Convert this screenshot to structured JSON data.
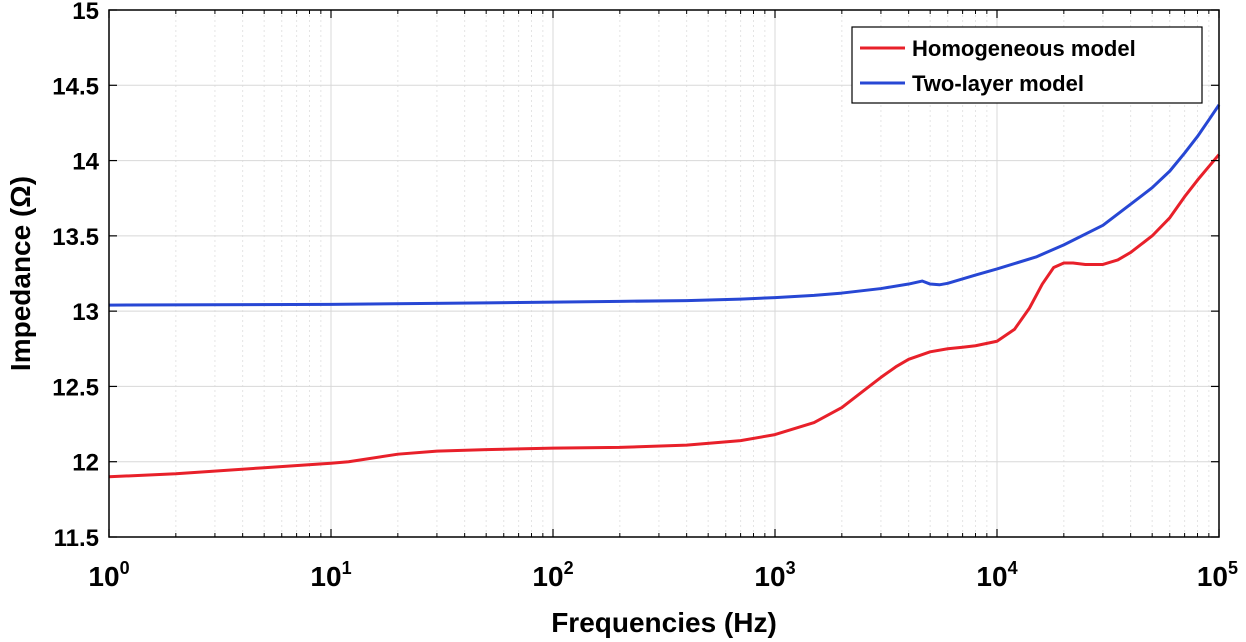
{
  "chart_data": {
    "type": "line",
    "title": "",
    "xlabel": "Frequencies (Hz)",
    "ylabel": "Impedance (Ω)",
    "xscale": "log",
    "xlim": [
      1,
      100000
    ],
    "ylim": [
      11.5,
      15
    ],
    "grid": true,
    "legend_position": "top-right",
    "x_ticks": [
      {
        "value": 1,
        "base": "10",
        "exp": "0"
      },
      {
        "value": 10,
        "base": "10",
        "exp": "1"
      },
      {
        "value": 100,
        "base": "10",
        "exp": "2"
      },
      {
        "value": 1000,
        "base": "10",
        "exp": "3"
      },
      {
        "value": 10000,
        "base": "10",
        "exp": "4"
      },
      {
        "value": 100000,
        "base": "10",
        "exp": "5"
      }
    ],
    "y_ticks": [
      {
        "value": 11.5,
        "label": "11.5"
      },
      {
        "value": 12,
        "label": "12"
      },
      {
        "value": 12.5,
        "label": "12.5"
      },
      {
        "value": 13,
        "label": "13"
      },
      {
        "value": 13.5,
        "label": "13.5"
      },
      {
        "value": 14,
        "label": "14"
      },
      {
        "value": 14.5,
        "label": "14.5"
      },
      {
        "value": 15,
        "label": "15"
      }
    ],
    "series": [
      {
        "name": "Homogeneous model",
        "color": "#e8202a",
        "points": [
          [
            1,
            11.9
          ],
          [
            2,
            11.92
          ],
          [
            5,
            11.96
          ],
          [
            10,
            11.99
          ],
          [
            12,
            12.0
          ],
          [
            20,
            12.05
          ],
          [
            30,
            12.07
          ],
          [
            50,
            12.08
          ],
          [
            100,
            12.09
          ],
          [
            200,
            12.095
          ],
          [
            400,
            12.11
          ],
          [
            700,
            12.14
          ],
          [
            1000,
            12.18
          ],
          [
            1500,
            12.26
          ],
          [
            2000,
            12.36
          ],
          [
            2500,
            12.47
          ],
          [
            3000,
            12.56
          ],
          [
            3500,
            12.63
          ],
          [
            4000,
            12.68
          ],
          [
            5000,
            12.73
          ],
          [
            6000,
            12.75
          ],
          [
            7000,
            12.76
          ],
          [
            8000,
            12.77
          ],
          [
            10000,
            12.8
          ],
          [
            12000,
            12.88
          ],
          [
            14000,
            13.02
          ],
          [
            16000,
            13.18
          ],
          [
            18000,
            13.29
          ],
          [
            20000,
            13.32
          ],
          [
            22000,
            13.32
          ],
          [
            25000,
            13.31
          ],
          [
            30000,
            13.31
          ],
          [
            35000,
            13.34
          ],
          [
            40000,
            13.39
          ],
          [
            50000,
            13.5
          ],
          [
            60000,
            13.62
          ],
          [
            70000,
            13.76
          ],
          [
            80000,
            13.87
          ],
          [
            90000,
            13.96
          ],
          [
            100000,
            14.04
          ]
        ]
      },
      {
        "name": "Two-layer model",
        "color": "#2747d4",
        "points": [
          [
            1,
            13.04
          ],
          [
            10,
            13.045
          ],
          [
            50,
            13.055
          ],
          [
            100,
            13.06
          ],
          [
            200,
            13.065
          ],
          [
            400,
            13.07
          ],
          [
            700,
            13.08
          ],
          [
            1000,
            13.09
          ],
          [
            1500,
            13.105
          ],
          [
            2000,
            13.12
          ],
          [
            3000,
            13.15
          ],
          [
            4000,
            13.18
          ],
          [
            4600,
            13.2
          ],
          [
            5000,
            13.18
          ],
          [
            5500,
            13.175
          ],
          [
            6000,
            13.185
          ],
          [
            8000,
            13.24
          ],
          [
            10000,
            13.28
          ],
          [
            15000,
            13.36
          ],
          [
            20000,
            13.44
          ],
          [
            30000,
            13.57
          ],
          [
            40000,
            13.71
          ],
          [
            50000,
            13.82
          ],
          [
            60000,
            13.93
          ],
          [
            70000,
            14.05
          ],
          [
            80000,
            14.16
          ],
          [
            90000,
            14.27
          ],
          [
            100000,
            14.37
          ]
        ]
      }
    ]
  }
}
